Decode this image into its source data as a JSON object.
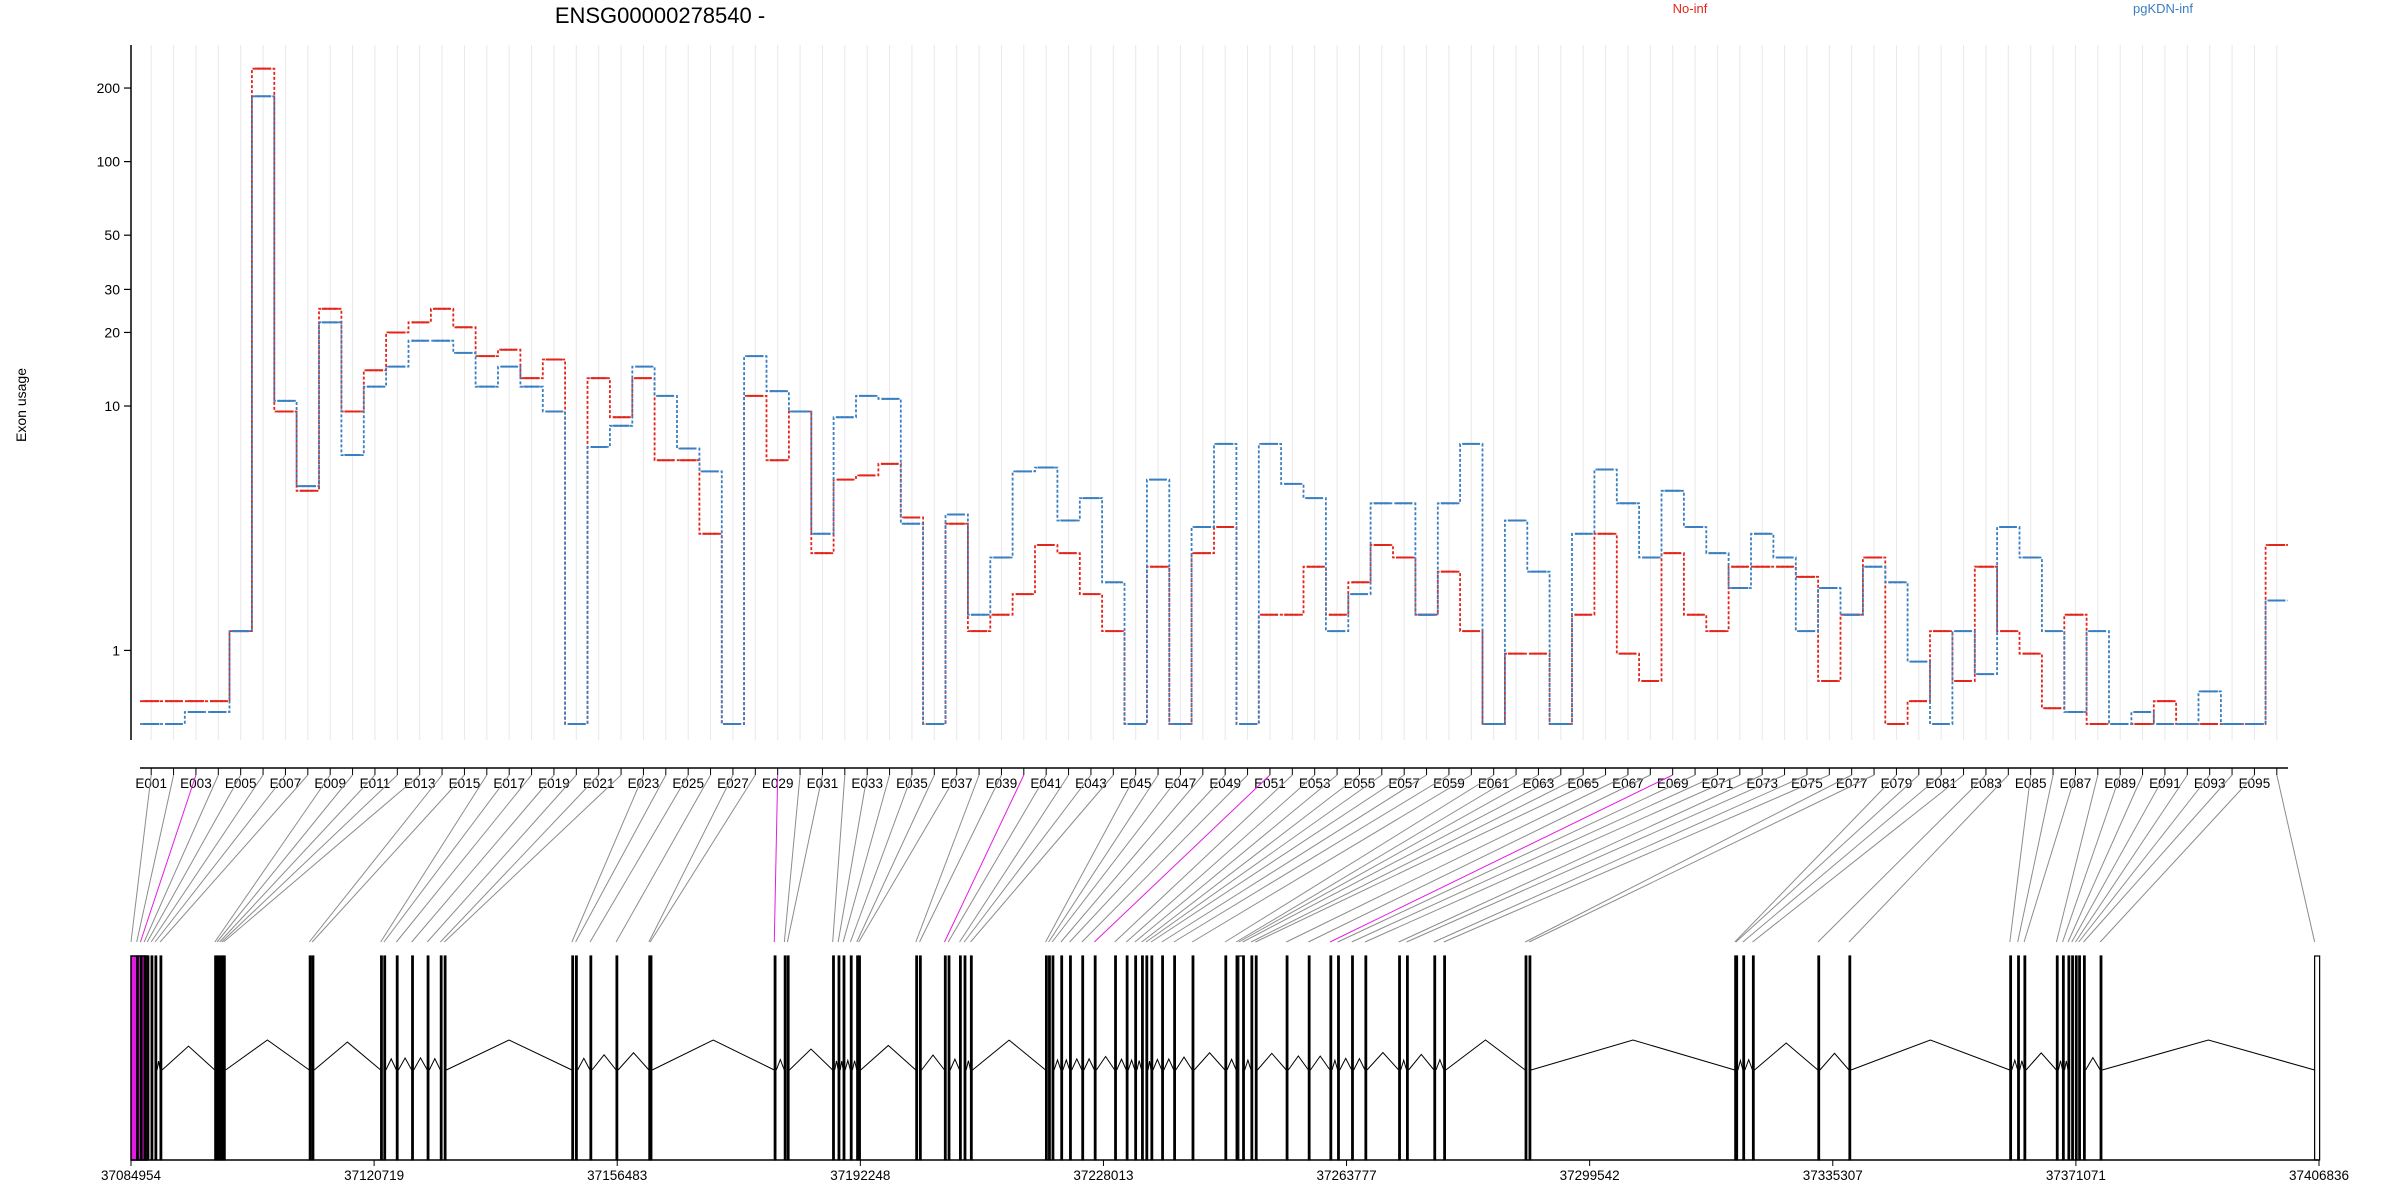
{
  "title": "ENSG00000278540 -",
  "ylabel": "Exon usage",
  "legend": [
    {
      "name": "No-inf",
      "color": "#e3261c"
    },
    {
      "name": "pgKDN-inf",
      "color": "#3a7fc1"
    }
  ],
  "colors": {
    "no_inf": "#e3261c",
    "pgkdn_inf": "#3a7fc1",
    "highlight": "#e31ce3",
    "connector": "#8c8c8c",
    "gene_model": "#000000"
  },
  "chart_data": {
    "type": "line",
    "scale_y": "log",
    "ylim": [
      0.43,
      300
    ],
    "yticks": [
      1,
      10,
      20,
      30,
      50,
      100,
      200
    ],
    "grid": "vertical",
    "legend_position": "top-right",
    "x": [
      "E001",
      "E002",
      "E003",
      "E004",
      "E005",
      "E006",
      "E007",
      "E008",
      "E009",
      "E010",
      "E011",
      "E012",
      "E013",
      "E014",
      "E015",
      "E016",
      "E017",
      "E018",
      "E019",
      "E020",
      "E021",
      "E022",
      "E023",
      "E024",
      "E025",
      "E026",
      "E027",
      "E028",
      "E029",
      "E030",
      "E031",
      "E032",
      "E033",
      "E034",
      "E035",
      "E036",
      "E037",
      "E038",
      "E039",
      "E040",
      "E041",
      "E042",
      "E043",
      "E044",
      "E045",
      "E046",
      "E047",
      "E048",
      "E049",
      "E050",
      "E051",
      "E052",
      "E053",
      "E054",
      "E055",
      "E056",
      "E057",
      "E058",
      "E059",
      "E060",
      "E061",
      "E062",
      "E063",
      "E064",
      "E065",
      "E066",
      "E067",
      "E068",
      "E069",
      "E070",
      "E071",
      "E072",
      "E073",
      "E074",
      "E075",
      "E076",
      "E077",
      "E078",
      "E079",
      "E080",
      "E081",
      "E082",
      "E083",
      "E084",
      "E085",
      "E086",
      "E087",
      "E088",
      "E089",
      "E090",
      "E091",
      "E092",
      "E093",
      "E094",
      "E095",
      "E096"
    ],
    "x_tick_labels": [
      "E001",
      "E003",
      "E005",
      "E007",
      "E009",
      "E011",
      "E013",
      "E015",
      "E017",
      "E019",
      "E021",
      "E023",
      "E025",
      "E027",
      "E029",
      "E031",
      "E033",
      "E035",
      "E037",
      "E039",
      "E041",
      "E043",
      "E045",
      "E047",
      "E049",
      "E051",
      "E053",
      "E055",
      "E057",
      "E059",
      "E061",
      "E063",
      "E065",
      "E067",
      "E069",
      "E071",
      "E073",
      "E075",
      "E077",
      "E079",
      "E081",
      "E083",
      "E085",
      "E087",
      "E089",
      "E091",
      "E093",
      "E095"
    ],
    "series": [
      {
        "name": "No-inf",
        "color": "#e3261c",
        "values": [
          0.62,
          0.62,
          0.62,
          0.62,
          1.2,
          240,
          9.5,
          4.5,
          25,
          9.5,
          14,
          20,
          22,
          25,
          21,
          16,
          17,
          13,
          15.5,
          0.5,
          13,
          9,
          13,
          6,
          6,
          3,
          0.5,
          11,
          6,
          9.5,
          2.5,
          5,
          5.2,
          5.8,
          3.5,
          0.5,
          3.3,
          1.2,
          1.4,
          1.7,
          2.7,
          2.5,
          1.7,
          1.2,
          0.5,
          2.2,
          0.5,
          2.5,
          3.2,
          0.5,
          1.4,
          1.4,
          2.2,
          1.4,
          1.9,
          2.7,
          2.4,
          1.4,
          2.1,
          1.2,
          0.5,
          0.97,
          0.97,
          0.5,
          1.4,
          3,
          0.97,
          0.75,
          2.5,
          1.4,
          1.2,
          2.2,
          2.2,
          2.2,
          2,
          0.75,
          1.4,
          2.4,
          0.5,
          0.62,
          1.2,
          0.75,
          2.2,
          1.2,
          0.97,
          0.58,
          1.4,
          0.5,
          0.5,
          0.5,
          0.62,
          0.5,
          0.5,
          0.5,
          0.5,
          2.7
        ]
      },
      {
        "name": "pgKDN-inf",
        "color": "#3a7fc1",
        "values": [
          0.5,
          0.5,
          0.56,
          0.56,
          1.2,
          185,
          10.5,
          4.7,
          22,
          6.3,
          12,
          14.5,
          18.5,
          18.5,
          16.5,
          12,
          14.5,
          12,
          9.5,
          0.5,
          6.8,
          8.3,
          14.5,
          11,
          6.7,
          5.4,
          0.5,
          16,
          11.5,
          9.5,
          3,
          9,
          11,
          10.7,
          3.3,
          0.5,
          3.6,
          1.4,
          2.4,
          5.4,
          5.6,
          3.4,
          4.2,
          1.9,
          0.5,
          5,
          0.5,
          3.2,
          7,
          0.5,
          7,
          4.8,
          4.2,
          1.2,
          1.7,
          4,
          4,
          1.4,
          4,
          7,
          0.5,
          3.4,
          2.1,
          0.5,
          3,
          5.5,
          4,
          2.4,
          4.5,
          3.2,
          2.5,
          1.8,
          3,
          2.4,
          1.2,
          1.8,
          1.4,
          2.2,
          1.9,
          0.9,
          0.5,
          1.2,
          0.8,
          3.2,
          2.4,
          1.2,
          0.56,
          1.2,
          0.5,
          0.56,
          0.5,
          0.5,
          0.68,
          0.5,
          0.5,
          1.6
        ]
      }
    ],
    "genomic_axis": {
      "tick_labels": [
        "37084954",
        "37120719",
        "37156483",
        "37192248",
        "37228013",
        "37263777",
        "37299542",
        "37335307",
        "37371071",
        "37406836"
      ],
      "range": [
        37084954,
        37406836
      ]
    },
    "exon_positions": [
      0,
      0.0026,
      0.0043,
      0.006,
      0.0074,
      0.0092,
      0.011,
      0.0133,
      0.0383,
      0.0393,
      0.0405,
      0.0414,
      0.0423,
      0.0815,
      0.0828,
      0.1141,
      0.1156,
      0.1213,
      0.1283,
      0.1354,
      0.1414,
      0.1432,
      0.2015,
      0.2032,
      0.2098,
      0.2217,
      0.2367,
      0.2373,
      0.294,
      0.2986,
      0.3,
      0.3207,
      0.3232,
      0.3255,
      0.3288,
      0.3317,
      0.3326,
      0.3587,
      0.3604,
      0.3718,
      0.3735,
      0.3787,
      0.3808,
      0.3837,
      0.418,
      0.4194,
      0.421,
      0.425,
      0.429,
      0.4346,
      0.4403,
      0.4496,
      0.4549,
      0.4588,
      0.4619,
      0.4639,
      0.4662,
      0.4711,
      0.4766,
      0.485,
      0.5,
      0.5051,
      0.5063,
      0.5081,
      0.5119,
      0.5139,
      0.528,
      0.5381,
      0.548,
      0.5515,
      0.5579,
      0.564,
      0.5794,
      0.583,
      0.5955,
      0.6,
      0.6372,
      0.639,
      0.733,
      0.7335,
      0.7367,
      0.7411,
      0.771,
      0.7852,
      0.8587,
      0.8623,
      0.8652,
      0.88,
      0.8828,
      0.8853,
      0.887,
      0.8887,
      0.8902,
      0.8924,
      0.9,
      0.998
    ],
    "highlighted_exons": [
      "E003",
      "E029",
      "E040",
      "E051",
      "E069"
    ]
  }
}
